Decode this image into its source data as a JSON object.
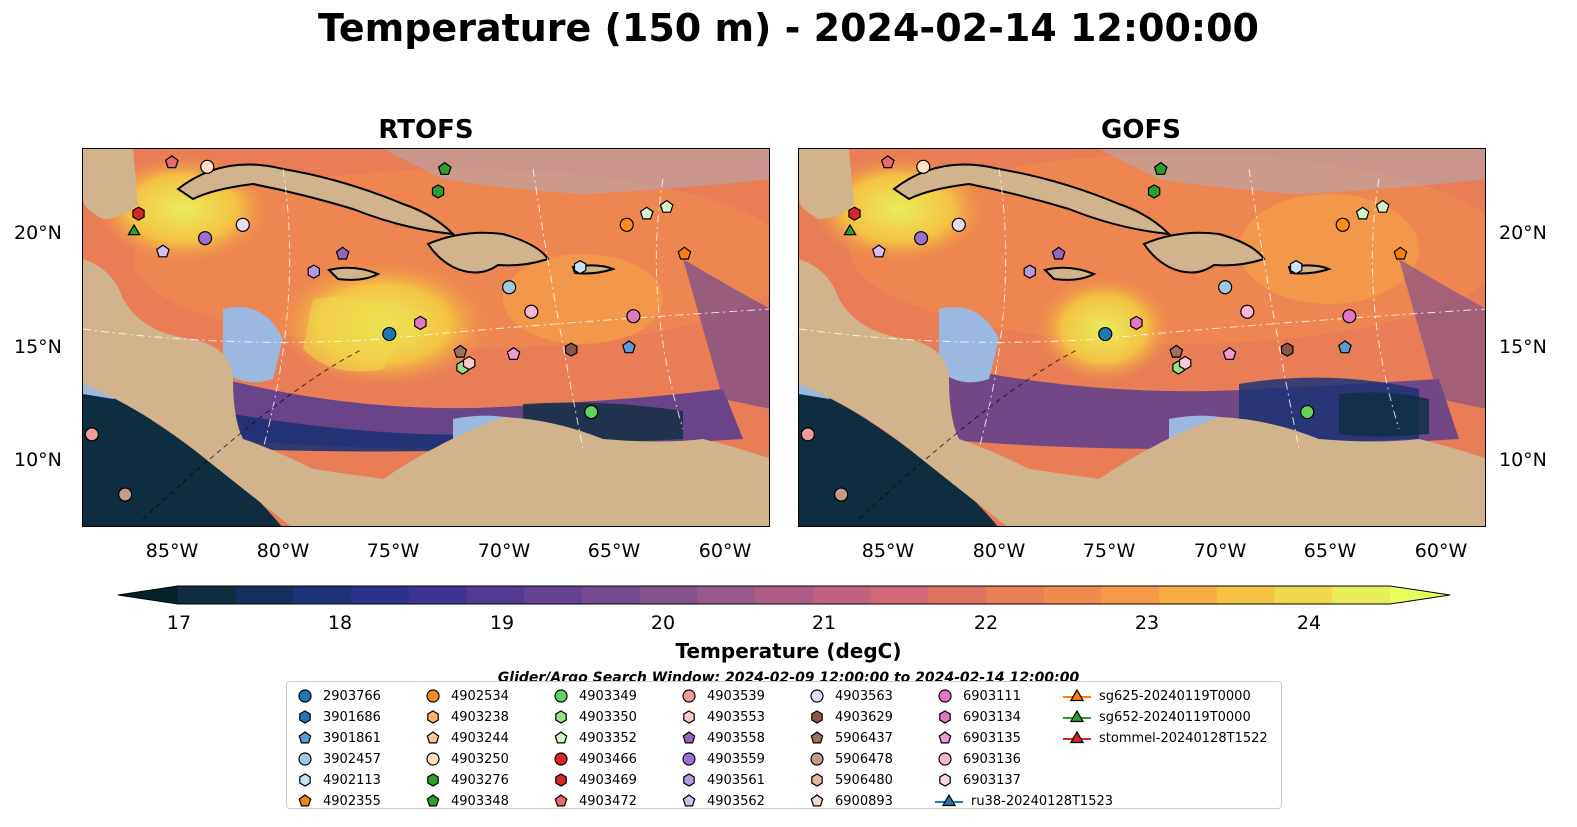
{
  "suptitle": "Temperature (150 m) - 2024-02-14 12:00:00",
  "panels": [
    {
      "title": "RTOFS"
    },
    {
      "title": "GOFS"
    }
  ],
  "lat_labels": [
    "20°N",
    "15°N",
    "10°N"
  ],
  "lon_labels": [
    "85°W",
    "80°W",
    "75°W",
    "70°W",
    "65°W",
    "60°W"
  ],
  "colorbar": {
    "label": "Temperature (degC)",
    "ticks": [
      "17",
      "18",
      "19",
      "20",
      "21",
      "22",
      "23",
      "24"
    ],
    "range": [
      16.5,
      24.5
    ],
    "colors": [
      "#0e2e3f",
      "#13305c",
      "#1d3276",
      "#2c3289",
      "#3e3390",
      "#523a92",
      "#634292",
      "#744a90",
      "#87518d",
      "#9a578a",
      "#ad5c86",
      "#c06180",
      "#d1687a",
      "#de7160",
      "#e87d56",
      "#f08a4e",
      "#f59a48",
      "#f7ac43",
      "#f5c243",
      "#f0d84c",
      "#e8ee5a"
    ],
    "low_color": "#07212b",
    "high_color": "#e8ff5c"
  },
  "window_note": "Glider/Argo Search Window: 2024-02-09 12:00:00 to 2024-02-14 12:00:00",
  "colors": {
    "land": "#d2b48c",
    "shelf": "#9ab8e0",
    "deep_pacific": "#0e2e3f"
  },
  "legend": [
    {
      "label": "2903766",
      "marker": "circle",
      "color": "#1f77b4"
    },
    {
      "label": "3901686",
      "marker": "hexagon",
      "color": "#1f77b4"
    },
    {
      "label": "3901861",
      "marker": "pentagon",
      "color": "#5b9bd5"
    },
    {
      "label": "3902457",
      "marker": "circle",
      "color": "#9ecae1"
    },
    {
      "label": "4902113",
      "marker": "hexagon",
      "color": "#c6e2f5"
    },
    {
      "label": "4902355",
      "marker": "pentagon",
      "color": "#ff7f0e"
    },
    {
      "label": "4902534",
      "marker": "circle",
      "color": "#ff8c1a"
    },
    {
      "label": "4903238",
      "marker": "hexagon",
      "color": "#ffb266"
    },
    {
      "label": "4903244",
      "marker": "pentagon",
      "color": "#ffc896"
    },
    {
      "label": "4903250",
      "marker": "circle",
      "color": "#ffe0c0"
    },
    {
      "label": "4903276",
      "marker": "hexagon",
      "color": "#2ca02c"
    },
    {
      "label": "4903348",
      "marker": "pentagon",
      "color": "#2ca02c"
    },
    {
      "label": "4903349",
      "marker": "circle",
      "color": "#5fd35f"
    },
    {
      "label": "4903350",
      "marker": "hexagon",
      "color": "#98df8a"
    },
    {
      "label": "4903352",
      "marker": "pentagon",
      "color": "#d4f5c8"
    },
    {
      "label": "4903466",
      "marker": "circle",
      "color": "#d62728"
    },
    {
      "label": "4903469",
      "marker": "hexagon",
      "color": "#d62728"
    },
    {
      "label": "4903472",
      "marker": "pentagon",
      "color": "#e86a6a"
    },
    {
      "label": "4903539",
      "marker": "circle",
      "color": "#f29a9a"
    },
    {
      "label": "4903553",
      "marker": "hexagon",
      "color": "#fbc9c9"
    },
    {
      "label": "4903558",
      "marker": "pentagon",
      "color": "#9467bd"
    },
    {
      "label": "4903559",
      "marker": "circle",
      "color": "#9a6fcf"
    },
    {
      "label": "4903561",
      "marker": "hexagon",
      "color": "#b59ae0"
    },
    {
      "label": "4903562",
      "marker": "pentagon",
      "color": "#d2bff0"
    },
    {
      "label": "4903563",
      "marker": "circle",
      "color": "#e8dcf8"
    },
    {
      "label": "4903629",
      "marker": "hexagon",
      "color": "#8c564b"
    },
    {
      "label": "5906437",
      "marker": "pentagon",
      "color": "#a0705f"
    },
    {
      "label": "5906478",
      "marker": "circle",
      "color": "#c49c8c"
    },
    {
      "label": "5906480",
      "marker": "hexagon",
      "color": "#e6b8a2"
    },
    {
      "label": "6900893",
      "marker": "pentagon",
      "color": "#f7d8c4"
    },
    {
      "label": "6903111",
      "marker": "circle",
      "color": "#e377c2"
    },
    {
      "label": "6903134",
      "marker": "hexagon",
      "color": "#e377c2"
    },
    {
      "label": "6903135",
      "marker": "pentagon",
      "color": "#f09ad6"
    },
    {
      "label": "6903136",
      "marker": "circle",
      "color": "#f7b6d2"
    },
    {
      "label": "6903137",
      "marker": "hexagon",
      "color": "#fbd6ec"
    },
    {
      "label": "ru38-20240128T1523",
      "marker": "triangle-line",
      "color": "#1f77b4"
    },
    {
      "label": "sg625-20240119T0000",
      "marker": "triangle-line",
      "color": "#ff7f0e"
    },
    {
      "label": "sg652-20240119T0000",
      "marker": "triangle-line",
      "color": "#2ca02c"
    },
    {
      "label": "stommel-20240128T1522",
      "marker": "triangle-line",
      "color": "#d62728"
    }
  ],
  "map_extent": {
    "lon": [
      -89,
      -58
    ],
    "lat": [
      7,
      24
    ]
  },
  "markers": [
    {
      "lon": -75.2,
      "lat": 15.7,
      "ref": 0
    },
    {
      "lon": -64.4,
      "lat": 15.1,
      "ref": 2
    },
    {
      "lon": -69.8,
      "lat": 17.8,
      "ref": 3
    },
    {
      "lon": -66.6,
      "lat": 18.7,
      "ref": 4
    },
    {
      "lon": -61.9,
      "lat": 19.3,
      "ref": 5
    },
    {
      "lon": -64.5,
      "lat": 20.6,
      "ref": 6
    },
    {
      "lon": -83.4,
      "lat": 23.2,
      "ref": 9
    },
    {
      "lon": -73.0,
      "lat": 22.1,
      "ref": 10
    },
    {
      "lon": -72.7,
      "lat": 23.1,
      "ref": 11
    },
    {
      "lon": -66.1,
      "lat": 12.2,
      "ref": 12
    },
    {
      "lon": -71.9,
      "lat": 14.2,
      "ref": 13
    },
    {
      "lon": -63.6,
      "lat": 21.1,
      "ref": 14
    },
    {
      "lon": -62.7,
      "lat": 21.4,
      "ref": 14
    },
    {
      "lon": -86.5,
      "lat": 21.1,
      "ref": 16
    },
    {
      "lon": -85.0,
      "lat": 23.4,
      "ref": 17
    },
    {
      "lon": -88.6,
      "lat": 11.2,
      "ref": 18
    },
    {
      "lon": -71.6,
      "lat": 14.4,
      "ref": 19
    },
    {
      "lon": -77.3,
      "lat": 19.3,
      "ref": 20
    },
    {
      "lon": -83.5,
      "lat": 20.0,
      "ref": 21
    },
    {
      "lon": -78.6,
      "lat": 18.5,
      "ref": 22
    },
    {
      "lon": -85.4,
      "lat": 19.4,
      "ref": 23
    },
    {
      "lon": -81.8,
      "lat": 20.6,
      "ref": 24
    },
    {
      "lon": -67.0,
      "lat": 15.0,
      "ref": 25
    },
    {
      "lon": -72.0,
      "lat": 14.9,
      "ref": 26
    },
    {
      "lon": -87.1,
      "lat": 8.5,
      "ref": 27
    },
    {
      "lon": -64.2,
      "lat": 16.5,
      "ref": 30
    },
    {
      "lon": -73.8,
      "lat": 16.2,
      "ref": 31
    },
    {
      "lon": -69.6,
      "lat": 14.8,
      "ref": 32
    },
    {
      "lon": -68.8,
      "lat": 16.7,
      "ref": 33
    },
    {
      "lon": -86.7,
      "lat": 20.3,
      "ref": 37
    }
  ]
}
